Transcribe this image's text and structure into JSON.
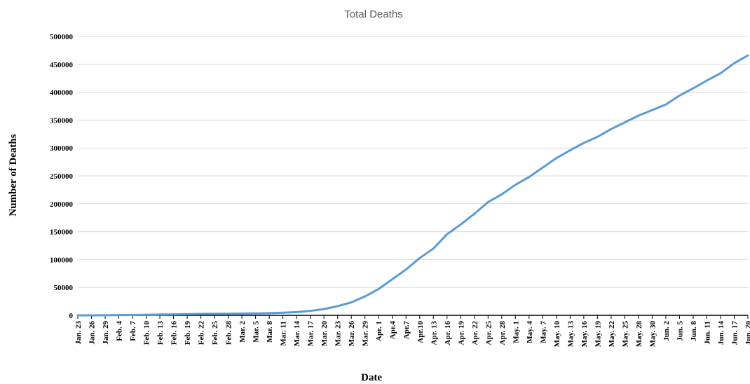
{
  "chart_data": {
    "type": "line",
    "title": "Total Deaths",
    "xlabel": "Date",
    "ylabel": "Number of Deaths",
    "ylim": [
      0,
      500000
    ],
    "yticks": [
      0,
      50000,
      100000,
      150000,
      200000,
      250000,
      300000,
      350000,
      400000,
      450000,
      500000
    ],
    "grid": true,
    "legend": "none",
    "line_color": "#5B9BD5",
    "x": [
      "Jan. 23",
      "Jan. 26",
      "Jan. 29",
      "Feb. 4",
      "Feb. 7",
      "Feb. 10",
      "Feb. 13",
      "Feb. 16",
      "Feb. 19",
      "Feb. 22",
      "Feb. 25",
      "Feb. 28",
      "Mar. 2",
      "Mar. 5",
      "Mar. 8",
      "Mar. 11",
      "Mar. 14",
      "Mar. 17",
      "Mar. 20",
      "Mar. 23",
      "Mar. 26",
      "Mar. 29",
      "Apr. 1",
      "Apr.4",
      "Apr.7",
      "Apr.10",
      "Apr. 13",
      "Apr. 16",
      "Apr. 19",
      "Apr. 22",
      "Apr. 25",
      "Apr. 28",
      "May. 1",
      "May. 4",
      "May. 7",
      "May. 10",
      "May. 13",
      "May. 16",
      "May. 19",
      "May. 22",
      "May. 25",
      "May. 28",
      "May. 30",
      "Jun. 2",
      "Jun. 5",
      "Jun. 8",
      "Jun. 11",
      "Jun. 14",
      "Jun. 17",
      "Jun. 20"
    ],
    "series": [
      {
        "values": [
          17,
          56,
          132,
          490,
          636,
          1016,
          1370,
          1770,
          2120,
          2460,
          2710,
          2870,
          3090,
          3400,
          3900,
          4600,
          5800,
          7900,
          11200,
          16500,
          23300,
          33900,
          47200,
          64700,
          82100,
          102700,
          119700,
          145500,
          163000,
          182000,
          203000,
          217000,
          234000,
          248000,
          265000,
          282000,
          296000,
          309000,
          320000,
          334000,
          346000,
          358000,
          368000,
          378000,
          394000,
          407000,
          421000,
          434000,
          452000,
          466000
        ]
      }
    ]
  }
}
